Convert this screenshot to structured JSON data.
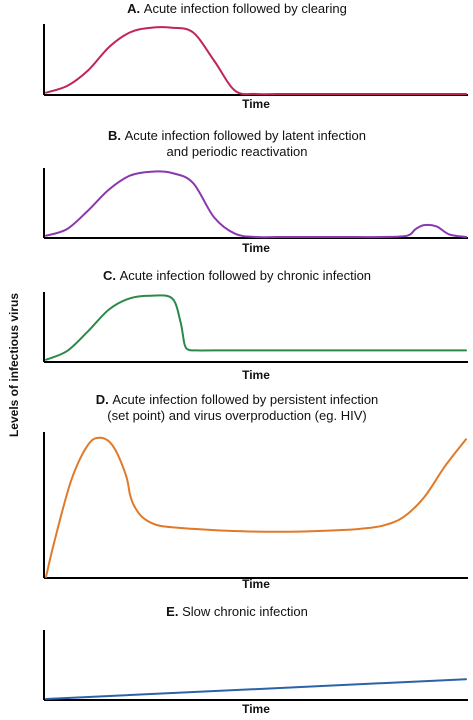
{
  "y_axis_label": "Levels of infectious virus",
  "chart_data": [
    {
      "type": "line",
      "letter": "A.",
      "title_lines": [
        "Acute infection followed by clearing"
      ],
      "xlabel": "Time",
      "color": "#c0245c",
      "x": [
        0,
        5,
        10,
        15,
        20,
        25,
        30,
        35,
        40,
        45,
        50,
        55,
        60,
        100
      ],
      "y": [
        0.02,
        0.12,
        0.35,
        0.7,
        0.92,
        0.99,
        0.99,
        0.92,
        0.5,
        0.05,
        0,
        0,
        0,
        0
      ]
    },
    {
      "type": "line",
      "letter": "B.",
      "title_lines": [
        "Acute infection followed by latent infection",
        "and periodic reactivation"
      ],
      "xlabel": "Time",
      "color": "#8a38b0",
      "x": [
        0,
        5,
        10,
        15,
        20,
        25,
        30,
        35,
        40,
        45,
        50,
        55,
        60,
        70,
        80,
        86,
        88,
        90,
        93,
        96,
        100
      ],
      "y": [
        0.02,
        0.12,
        0.4,
        0.72,
        0.93,
        0.99,
        0.97,
        0.82,
        0.3,
        0.05,
        0,
        0,
        0,
        0,
        0,
        0.02,
        0.12,
        0.18,
        0.16,
        0.04,
        0
      ]
    },
    {
      "type": "line",
      "letter": "C.",
      "title_lines": [
        "Acute infection followed by chronic infection"
      ],
      "xlabel": "Time",
      "color": "#2a8a4a",
      "x": [
        0,
        5,
        10,
        15,
        20,
        25,
        30,
        32,
        33,
        34,
        36,
        40,
        60,
        80,
        100
      ],
      "y": [
        0.02,
        0.15,
        0.45,
        0.78,
        0.95,
        0.99,
        0.95,
        0.6,
        0.25,
        0.17,
        0.16,
        0.16,
        0.16,
        0.16,
        0.16
      ]
    },
    {
      "type": "line",
      "letter": "D.",
      "title_lines": [
        "Acute infection followed by persistent infection",
        "(set point) and virus overproduction (eg. HIV)"
      ],
      "xlabel": "Time",
      "color": "#e07a2a",
      "x": [
        0,
        2,
        6,
        10,
        13,
        16,
        19,
        20,
        21,
        23,
        26,
        30,
        40,
        50,
        60,
        70,
        75,
        80,
        85,
        90,
        95,
        100
      ],
      "y": [
        0.0,
        0.25,
        0.68,
        0.93,
        0.98,
        0.92,
        0.72,
        0.58,
        0.5,
        0.42,
        0.37,
        0.35,
        0.33,
        0.32,
        0.32,
        0.33,
        0.34,
        0.36,
        0.42,
        0.56,
        0.78,
        0.97
      ]
    },
    {
      "type": "line",
      "letter": "E.",
      "title_lines": [
        "Slow chronic infection"
      ],
      "xlabel": "Time",
      "color": "#2a63a8",
      "x": [
        0,
        100
      ],
      "y": [
        0.0,
        0.3
      ]
    }
  ]
}
